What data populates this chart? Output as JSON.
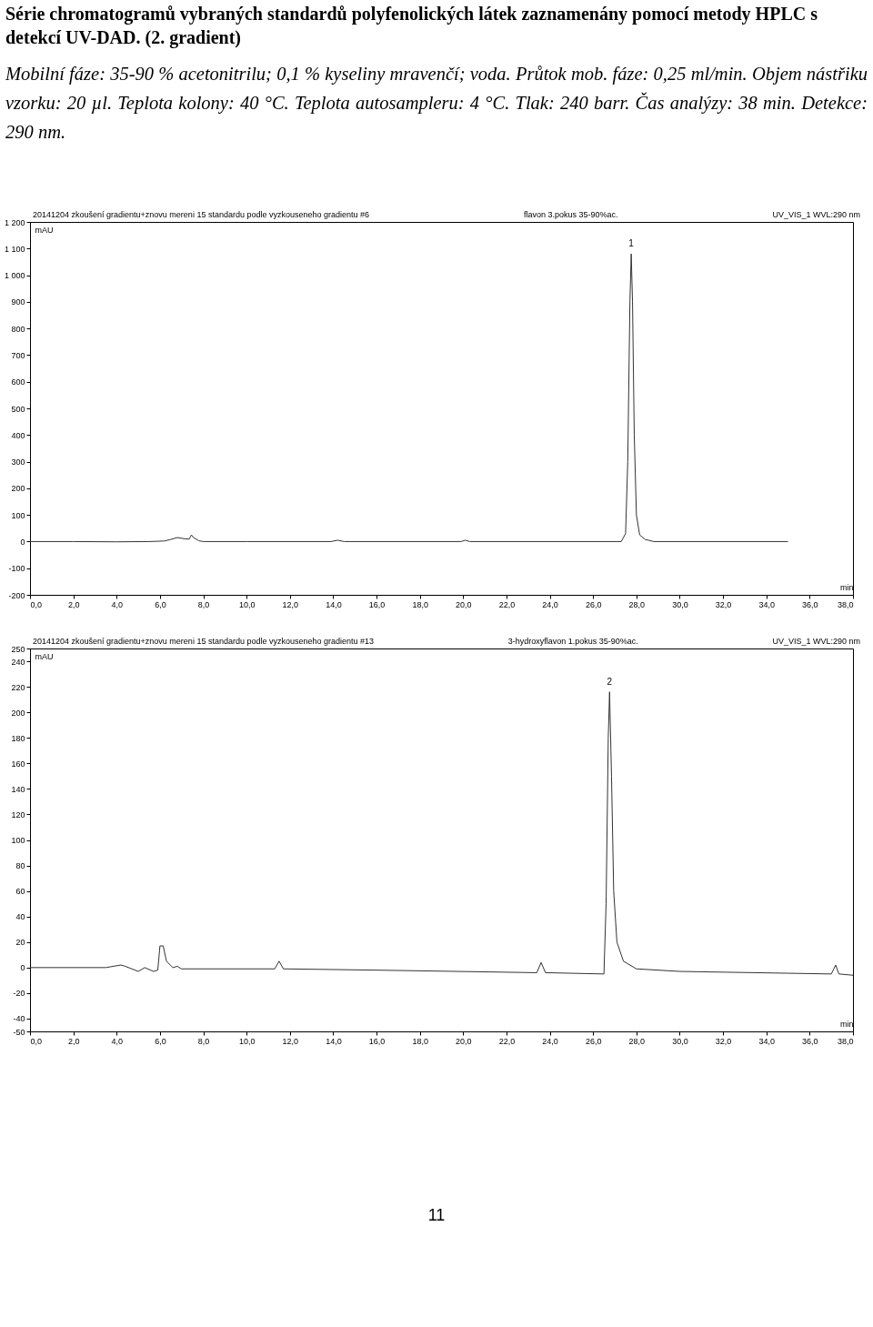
{
  "chart_data": [
    {
      "type": "line",
      "title": "Série chromatogramů vybraných standardů polyfenolických látek zaznamenány pomocí metody HPLC s detekcí UV-DAD. (2. gradient)",
      "subtitle": "Mobilní fáze: 35-90 % acetonitrilu; 0,1 % kyseliny mravenčí; voda. Průtok mob. fáze: 0,25 ml/min. Objem nástřiku vzorku: 20 µl. Teplota kolony: 40 °C. Teplota autosampleru: 4 °C. Tlak: 240 barr. Čas analýzy: 38 min. Detekce: 290 nm.",
      "xlabel": "min",
      "ylabel": "mAU",
      "annotations": [
        "20141204 zkoušení gradientu+znovu mereni 15 standardu podle vyzkouseneho gradientu #6",
        "flavon 3.pokus 35-90%ac.",
        "UV_VIS_1 WVL:290 nm",
        {
          "text": "1",
          "x": 27.76,
          "y": 1080
        }
      ],
      "series": [
        {
          "color": "#333333",
          "x": [
            0,
            2,
            4,
            5.5,
            6.2,
            6.5,
            6.8,
            7.1,
            7.35,
            7.45,
            7.55,
            7.8,
            8,
            10,
            13.9,
            14.2,
            14.5,
            19.9,
            20.1,
            20.3,
            27.3,
            27.5,
            27.6,
            27.7,
            27.76,
            27.82,
            27.9,
            28,
            28.15,
            28.4,
            28.8,
            35
          ],
          "values": [
            0,
            0,
            -1,
            0,
            2,
            8,
            15,
            11,
            9,
            25,
            15,
            3,
            0,
            0,
            0,
            5,
            0,
            0,
            5,
            0,
            0,
            30,
            300,
            900,
            1080,
            900,
            400,
            100,
            25,
            8,
            0,
            0
          ]
        }
      ],
      "xlim": [
        0,
        38
      ],
      "xticks": [
        {
          "value": 0,
          "label": "0,0"
        },
        {
          "value": 2,
          "label": "2,0"
        },
        {
          "value": 4,
          "label": "4,0"
        },
        {
          "value": 6,
          "label": "6,0"
        },
        {
          "value": 8,
          "label": "8,0"
        },
        {
          "value": 10,
          "label": "10,0"
        },
        {
          "value": 12,
          "label": "12,0"
        },
        {
          "value": 14,
          "label": "14,0"
        },
        {
          "value": 16,
          "label": "16,0"
        },
        {
          "value": 18,
          "label": "18,0"
        },
        {
          "value": 20,
          "label": "20,0"
        },
        {
          "value": 22,
          "label": "22,0"
        },
        {
          "value": 24,
          "label": "24,0"
        },
        {
          "value": 26,
          "label": "26,0"
        },
        {
          "value": 28,
          "label": "28,0"
        },
        {
          "value": 30,
          "label": "30,0"
        },
        {
          "value": 32,
          "label": "32,0"
        },
        {
          "value": 34,
          "label": "34,0"
        },
        {
          "value": 36,
          "label": "36,0"
        },
        {
          "value": 38,
          "label": "38,0"
        }
      ],
      "ylim": [
        -200,
        1200
      ],
      "yticks": [
        -200,
        -100,
        0,
        100,
        200,
        300,
        400,
        500,
        600,
        700,
        800,
        900,
        {
          "value": 1000,
          "label": "1 000"
        },
        {
          "value": 1100,
          "label": "1 100"
        },
        {
          "value": 1200,
          "label": "1 200"
        }
      ],
      "grid": false
    },
    {
      "type": "line",
      "xlabel": "min",
      "ylabel": "mAU",
      "annotations": [
        "20141204 zkoušení gradientu+znovu mereni 15 standardu podle vyzkouseneho gradientu #13",
        "3-hydroxyflavon 1.pokus 35-90%ac.",
        "UV_VIS_1 WVL:290 nm",
        {
          "text": "2",
          "x": 26.76,
          "y": 216
        },
        "11"
      ],
      "series": [
        {
          "color": "#333333",
          "x": [
            0,
            3.5,
            4.2,
            4.4,
            5,
            5.3,
            5.7,
            5.9,
            6,
            6.15,
            6.3,
            6.6,
            6.8,
            7,
            11.3,
            11.5,
            11.7,
            16,
            23.4,
            23.6,
            23.8,
            26.5,
            26.6,
            26.7,
            26.76,
            26.85,
            26.95,
            27.1,
            27.4,
            28,
            30,
            37,
            37.2,
            37.35,
            38
          ],
          "values": [
            0,
            0,
            2,
            1,
            -3,
            0,
            -3,
            -2,
            17,
            17,
            5,
            0,
            1,
            -1,
            -1,
            5,
            -1,
            -2,
            -4,
            4,
            -4,
            -5,
            50,
            180,
            216,
            150,
            60,
            20,
            5,
            -1,
            -3,
            -5,
            2,
            -5,
            -6
          ]
        }
      ],
      "xlim": [
        0,
        38
      ],
      "xticks": [
        {
          "value": 0,
          "label": "0,0"
        },
        {
          "value": 2,
          "label": "2,0"
        },
        {
          "value": 4,
          "label": "4,0"
        },
        {
          "value": 6,
          "label": "6,0"
        },
        {
          "value": 8,
          "label": "8,0"
        },
        {
          "value": 10,
          "label": "10,0"
        },
        {
          "value": 12,
          "label": "12,0"
        },
        {
          "value": 14,
          "label": "14,0"
        },
        {
          "value": 16,
          "label": "16,0"
        },
        {
          "value": 18,
          "label": "18,0"
        },
        {
          "value": 20,
          "label": "20,0"
        },
        {
          "value": 22,
          "label": "22,0"
        },
        {
          "value": 24,
          "label": "24,0"
        },
        {
          "value": 26,
          "label": "26,0"
        },
        {
          "value": 28,
          "label": "28,0"
        },
        {
          "value": 30,
          "label": "30,0"
        },
        {
          "value": 32,
          "label": "32,0"
        },
        {
          "value": 34,
          "label": "34,0"
        },
        {
          "value": 36,
          "label": "36,0"
        },
        {
          "value": 38,
          "label": "38,0"
        }
      ],
      "ylim": [
        -50,
        250
      ],
      "yticks": [
        -50,
        -40,
        -20,
        0,
        20,
        40,
        60,
        80,
        100,
        120,
        140,
        160,
        180,
        200,
        220,
        240,
        250
      ],
      "grid": false
    }
  ]
}
